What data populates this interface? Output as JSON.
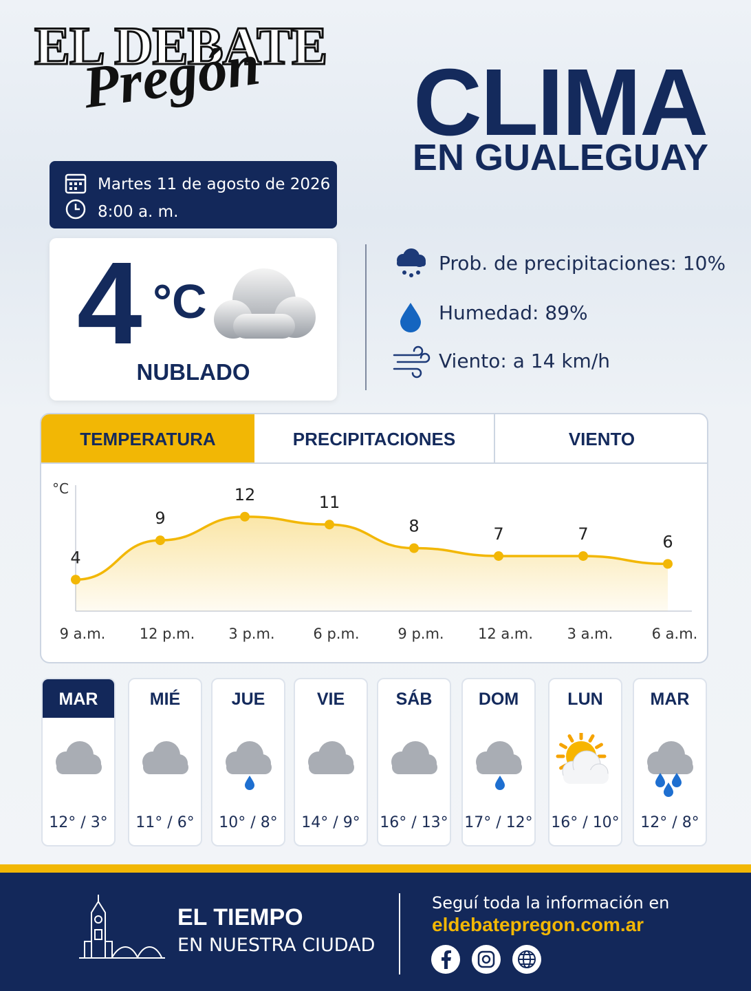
{
  "header": {
    "logo_top": "EL DEBATE",
    "logo_script": "Pregón",
    "title": "CLIMA",
    "subtitle": "EN GUALEGUAY",
    "date": "Martes 11 de agosto de 2026",
    "time": "8:00 a. m."
  },
  "current": {
    "temp": 4,
    "unit": "°C",
    "condition": "NUBLADO"
  },
  "details": [
    "Prob. de precipitaciones: 10%",
    "Humedad: 89%",
    "Viento: a 14 km/h"
  ],
  "tabs": [
    "TEMPERATURA",
    "PRECIPITACIONES",
    "VIENTO"
  ],
  "active_tab": 0,
  "chart_data": {
    "type": "line",
    "y_label": "°C",
    "categories": [
      "9 a.m.",
      "12 p.m.",
      "3 p.m.",
      "6 p.m.",
      "9 p.m.",
      "12 a.m.",
      "3 a.m.",
      "6 a.m."
    ],
    "values": [
      4,
      9,
      12,
      11,
      8,
      7,
      7,
      6
    ],
    "color": "#f2b705",
    "ylim": [
      0,
      16
    ]
  },
  "active_day": 0,
  "days": [
    {
      "day": "MAR",
      "temps": "12° / 3°",
      "icon": "cloudy"
    },
    {
      "day": "MIÉ",
      "temps": "11° / 6°",
      "icon": "cloudy"
    },
    {
      "day": "JUE",
      "temps": "10° / 8°",
      "icon": "rain"
    },
    {
      "day": "VIE",
      "temps": "14° / 9°",
      "icon": "cloudy"
    },
    {
      "day": "SÁB",
      "temps": "16° / 13°",
      "icon": "cloudy"
    },
    {
      "day": "DOM",
      "temps": "17° / 12°",
      "icon": "rain"
    },
    {
      "day": "LUN",
      "temps": "16° / 10°",
      "icon": "partly-sunny"
    },
    {
      "day": "MAR",
      "temps": "12° / 8°",
      "icon": "heavy-rain"
    }
  ],
  "footer": {
    "title": "EL TIEMPO",
    "subtitle": "EN NUESTRA CIUDAD",
    "follow": "Seguí toda la información en",
    "url": "eldebatepregon.com.ar"
  }
}
